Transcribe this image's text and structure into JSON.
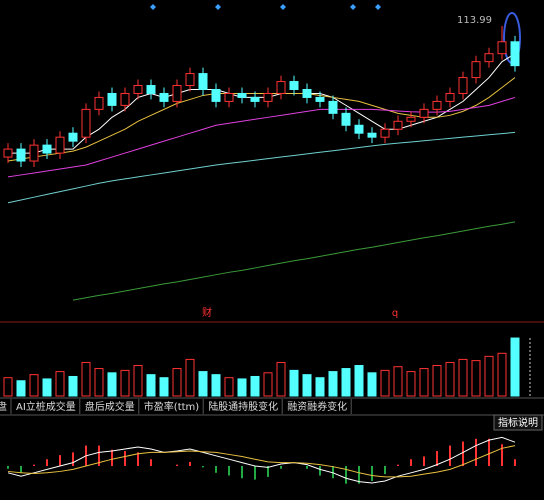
{
  "chart_data": {
    "type": "candlestick",
    "up_color": "#ff3232",
    "down_color": "#54ffff",
    "ylim": [
      40,
      118
    ],
    "candles": {
      "open": [
        81,
        83,
        80,
        84,
        82,
        87,
        86,
        93,
        97,
        94,
        97,
        99,
        97,
        95,
        99,
        102,
        98,
        95,
        97,
        96,
        95,
        97,
        100,
        98,
        96,
        95,
        92,
        89,
        87,
        86,
        88,
        90,
        91,
        93,
        95,
        97,
        101,
        105,
        107,
        110
      ],
      "close": [
        83,
        80,
        84,
        82,
        86,
        85,
        93,
        96,
        94,
        97,
        99,
        97,
        95,
        99,
        102,
        98,
        95,
        97,
        96,
        95,
        97,
        100,
        98,
        96,
        95,
        92,
        89,
        87,
        86,
        88,
        90,
        91,
        93,
        95,
        97,
        101,
        105,
        107,
        110,
        104
      ],
      "high": [
        84.5,
        84.5,
        85.5,
        85.5,
        87.5,
        88.5,
        94.5,
        97.5,
        98.5,
        98.5,
        100.5,
        100.5,
        98.5,
        100.5,
        103.5,
        103.5,
        99.5,
        98.5,
        98.5,
        97.5,
        98.5,
        101.5,
        101.5,
        99.5,
        97.5,
        96.5,
        93.5,
        90.5,
        88.5,
        89.5,
        91.5,
        92.5,
        94.5,
        96.5,
        98.5,
        102.5,
        106.5,
        108.5,
        113.99,
        111.5
      ],
      "low": [
        79.5,
        78.5,
        78.5,
        80.5,
        80.5,
        83.5,
        84.5,
        91.5,
        92.5,
        92.5,
        95.5,
        95.5,
        93.5,
        93.5,
        97.5,
        96.5,
        93.5,
        93.5,
        94.5,
        93.5,
        93.5,
        95.5,
        96.5,
        94.5,
        93.5,
        90.5,
        87.5,
        85.5,
        84.5,
        84.5,
        86.5,
        88.5,
        89.5,
        91.5,
        93.5,
        95.5,
        99.5,
        103.5,
        105.5,
        102.5
      ]
    },
    "ma": [
      {
        "color": "#ffffff",
        "values": [
          82,
          82,
          82,
          83,
          83,
          83,
          86,
          88,
          91,
          93,
          96,
          97,
          96,
          97,
          98,
          98,
          98,
          97,
          96,
          96,
          96,
          97,
          97,
          97,
          97,
          96,
          94,
          92,
          90,
          88,
          88,
          89,
          90,
          91,
          93,
          95,
          98,
          101,
          105,
          107
        ]
      },
      {
        "color": "#e8c040",
        "values": [
          80,
          80.5,
          81,
          81.5,
          82,
          82.5,
          83.5,
          85,
          86.5,
          88,
          90,
          91.5,
          93,
          94.5,
          95.5,
          96.5,
          97,
          97,
          97,
          97,
          97,
          97,
          97,
          97,
          96.5,
          96,
          95.5,
          95,
          94,
          93,
          92,
          91.5,
          91,
          91,
          91.5,
          92.5,
          94,
          96,
          98.5,
          101
        ]
      },
      {
        "color": "#e040e0",
        "values": [
          76,
          76.5,
          77,
          77.5,
          78,
          78.5,
          79,
          80,
          81,
          82,
          83,
          84,
          85,
          86,
          87,
          88,
          89,
          89.5,
          90,
          90.5,
          91,
          91.5,
          92,
          92.5,
          93,
          93,
          93,
          93,
          93,
          92.8,
          92.6,
          92.4,
          92.3,
          92.3,
          92.5,
          93,
          93.5,
          94,
          95,
          96
        ]
      },
      {
        "color": "#70d0d0",
        "values": [
          69.5,
          70.2,
          70.9,
          71.6,
          72.3,
          73,
          73.7,
          74.4,
          75,
          75.5,
          76,
          76.5,
          77,
          77.5,
          78,
          78.5,
          79,
          79.4,
          79.8,
          80.2,
          80.6,
          81,
          81.4,
          81.8,
          82.2,
          82.6,
          83,
          83.4,
          83.8,
          84.2,
          84.5,
          84.8,
          85.1,
          85.4,
          85.7,
          86,
          86.3,
          86.6,
          86.9,
          87.2
        ]
      },
      {
        "color": "#3a9a3a",
        "values": [
          null,
          null,
          null,
          null,
          null,
          45,
          45.6,
          46.2,
          46.7,
          47.3,
          47.9,
          48.5,
          49.1,
          49.6,
          50.2,
          50.8,
          51.4,
          52,
          52.5,
          53.1,
          53.7,
          54.3,
          54.9,
          55.4,
          56,
          56.6,
          57.2,
          57.8,
          58.3,
          58.9,
          59.5,
          60.1,
          60.7,
          61.2,
          61.8,
          62.4,
          63,
          63.6,
          64.1,
          64.7
        ]
      }
    ],
    "event_markers": [
      {
        "label": "财",
        "color": "#ff3232"
      },
      {
        "label": "q",
        "color": "#ff3232"
      }
    ],
    "volume": {
      "ylim": [
        0,
        100
      ],
      "values": [
        30,
        25,
        35,
        28,
        40,
        32,
        55,
        45,
        38,
        42,
        50,
        35,
        30,
        45,
        60,
        40,
        35,
        30,
        28,
        32,
        38,
        55,
        42,
        35,
        30,
        40,
        45,
        50,
        38,
        42,
        48,
        40,
        45,
        50,
        55,
        60,
        58,
        65,
        70,
        95
      ]
    },
    "macd": {
      "ylim": [
        -5,
        5
      ],
      "dif": {
        "color": "#ffffff",
        "values": [
          -1,
          -1.5,
          -1,
          -0.5,
          0,
          0.5,
          1.5,
          2,
          2.2,
          2.5,
          2.8,
          2.5,
          2,
          2.2,
          2.5,
          2,
          1.5,
          1,
          0.5,
          0,
          -0.2,
          0.3,
          0.5,
          0.2,
          -0.5,
          -1,
          -1.8,
          -2.3,
          -2.5,
          -2.2,
          -1.5,
          -1,
          -0.5,
          0.2,
          1,
          2,
          3,
          3.8,
          4.2,
          3.5
        ]
      },
      "dea": {
        "color": "#e8c040",
        "values": [
          -0.8,
          -1,
          -1.1,
          -1,
          -0.8,
          -0.5,
          0,
          0.5,
          1,
          1.4,
          1.8,
          2,
          2,
          2.1,
          2.2,
          2.1,
          2,
          1.7,
          1.4,
          1,
          0.6,
          0.5,
          0.5,
          0.4,
          0.2,
          -0.1,
          -0.5,
          -1,
          -1.4,
          -1.6,
          -1.6,
          -1.5,
          -1.2,
          -0.9,
          -0.5,
          0.2,
          1,
          1.8,
          2.6,
          3
        ]
      },
      "hist": [
        -0.4,
        -1,
        0.2,
        1,
        1.6,
        2,
        3,
        3,
        2.4,
        2.2,
        2,
        1,
        0,
        0.2,
        0.6,
        -0.2,
        -1,
        -1.4,
        -1.8,
        -2,
        -1.6,
        -0.4,
        0,
        -0.4,
        -1.4,
        -1.8,
        -2.6,
        -2.6,
        -2.2,
        -1.2,
        0.2,
        1,
        1.4,
        2.2,
        3,
        3.6,
        4,
        4,
        3.2,
        1
      ]
    },
    "tabs": [
      "盘",
      "AI立桩成交量",
      "盘后成交量",
      "市盈率(ttm)",
      "陆股通持股变化",
      "融资融券变化"
    ],
    "indicator_button": "指标说明"
  }
}
